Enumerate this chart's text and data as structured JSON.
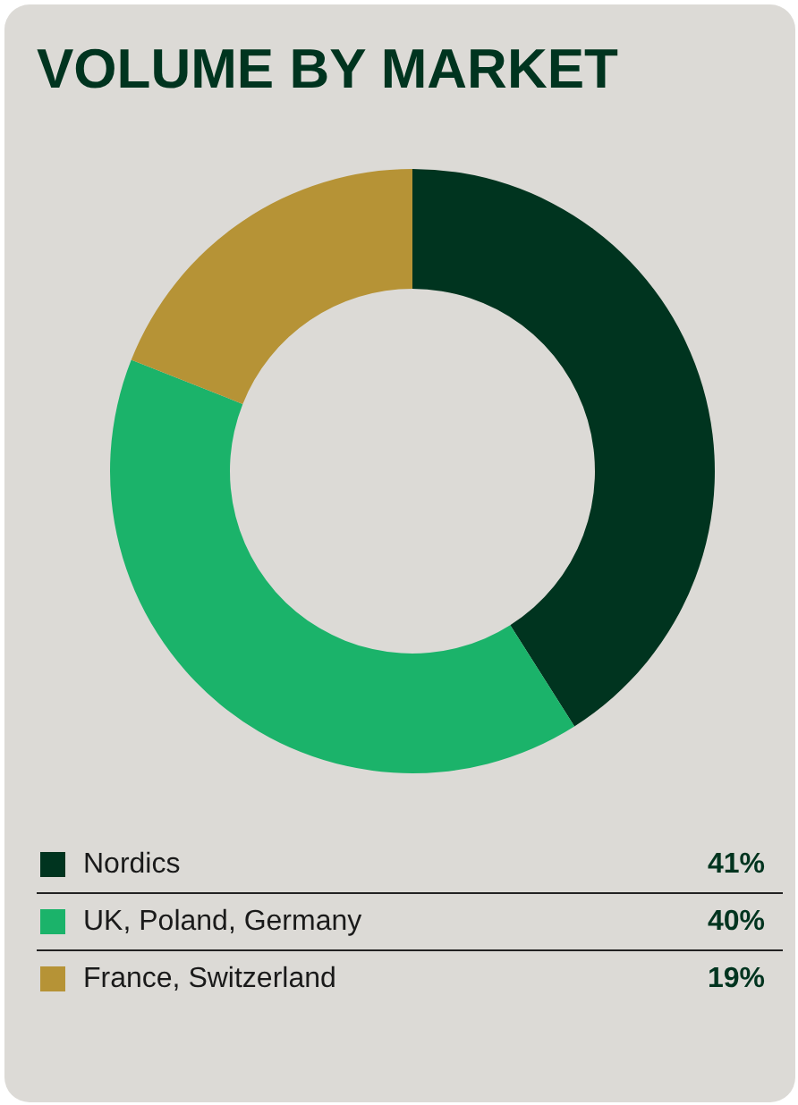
{
  "chart_data": {
    "type": "donut",
    "title": "VOLUME BY MARKET",
    "categories": [
      "Nordics",
      "UK, Poland, Germany",
      "France, Switzerland"
    ],
    "values": [
      41,
      40,
      19
    ],
    "colors": [
      "#00341f",
      "#1bb36a",
      "#b69336"
    ],
    "value_labels": [
      "41%",
      "40%",
      "19%"
    ],
    "legend": "bottom"
  }
}
